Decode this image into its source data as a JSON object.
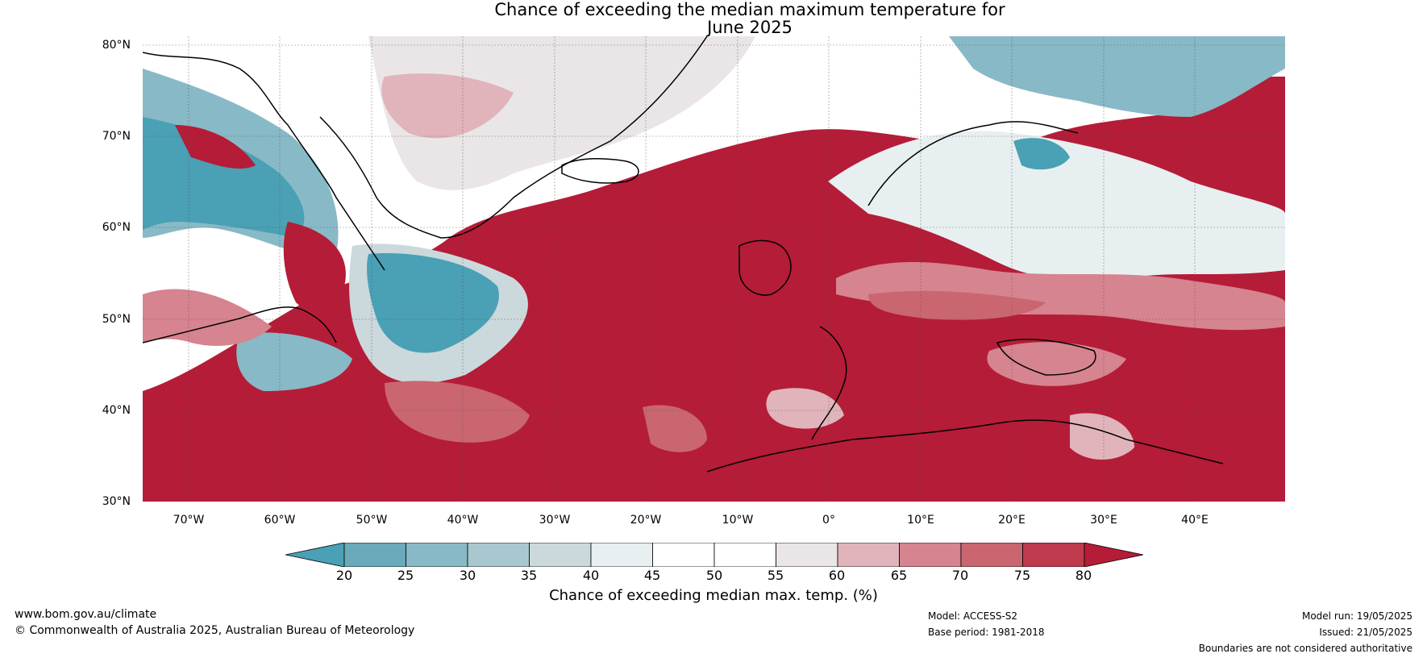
{
  "title": {
    "line1": "Chance of exceeding the median maximum temperature for",
    "line2": "June 2025"
  },
  "map": {
    "lat_labels": [
      "80°N",
      "70°N",
      "60°N",
      "50°N",
      "40°N",
      "30°N"
    ],
    "lon_labels": [
      "70°W",
      "60°W",
      "50°W",
      "40°W",
      "30°W",
      "20°W",
      "10°W",
      "0°",
      "10°E",
      "20°E",
      "30°E",
      "40°E"
    ]
  },
  "colorbar": {
    "ticks": [
      "20",
      "25",
      "30",
      "35",
      "40",
      "45",
      "50",
      "55",
      "60",
      "65",
      "70",
      "75",
      "80"
    ],
    "label": "Chance of exceeding median max. temp. (%)",
    "colors": [
      "#4aa0b4",
      "#6aaabb",
      "#88b9c6",
      "#a9c7cf",
      "#cbd8dc",
      "#e8eff1",
      "#ffffff",
      "#ffffff",
      "#eae6e7",
      "#e0b4ba",
      "#d6848f",
      "#ca6670",
      "#be3a4d",
      "#b51c37"
    ]
  },
  "footer": {
    "website": "www.bom.gov.au/climate",
    "copyright": "© Commonwealth of Australia 2025, Australian Bureau of Meteorology",
    "model": "Model: ACCESS-S2",
    "base_period": "Base period: 1981-2018",
    "model_run": "Model run: 19/05/2025",
    "issued": "Issued: 21/05/2025",
    "disclaimer": "Boundaries are not considered authoritative"
  }
}
